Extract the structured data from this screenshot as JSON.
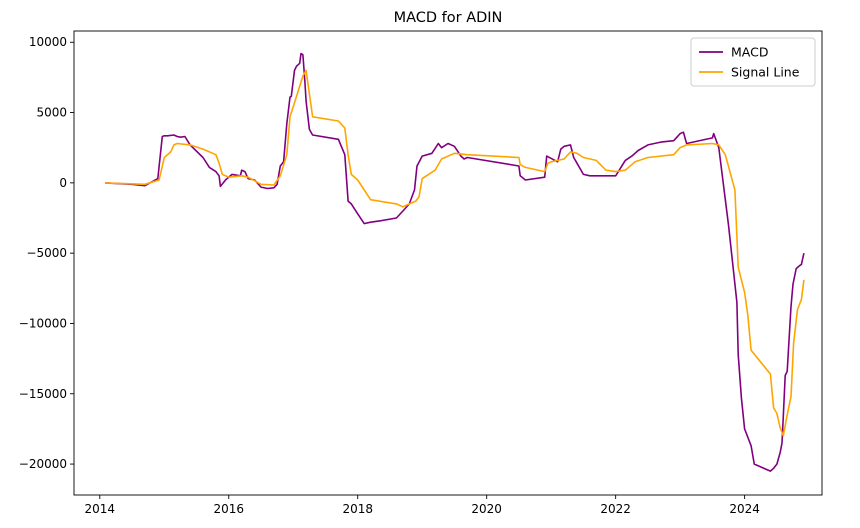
{
  "chart_data": {
    "type": "line",
    "title": "MACD for ADIN",
    "xlabel": "",
    "ylabel": "",
    "xlim": [
      2013.6,
      2025.2
    ],
    "ylim": [
      -22200,
      10800
    ],
    "x_ticks": [
      2014,
      2016,
      2018,
      2020,
      2022,
      2024
    ],
    "y_ticks": [
      10000,
      5000,
      0,
      -5000,
      -10000,
      -15000,
      -20000
    ],
    "y_tick_labels": [
      "10000",
      "5000",
      "0",
      "−5000",
      "−10000",
      "−15000",
      "−20000"
    ],
    "grid": false,
    "legend_position": "top-right",
    "series": [
      {
        "name": "MACD",
        "color": "#800080",
        "x": [
          2014.08,
          2014.5,
          2014.7,
          2014.9,
          2014.97,
          2015.0,
          2015.05,
          2015.15,
          2015.2,
          2015.25,
          2015.32,
          2015.4,
          2015.6,
          2015.7,
          2015.8,
          2015.85,
          2015.87,
          2015.95,
          2016.05,
          2016.18,
          2016.2,
          2016.25,
          2016.3,
          2016.4,
          2016.5,
          2016.6,
          2016.7,
          2016.75,
          2016.8,
          2016.85,
          2016.9,
          2016.95,
          2016.97,
          2017.02,
          2017.05,
          2017.1,
          2017.12,
          2017.15,
          2017.18,
          2017.2,
          2017.25,
          2017.3,
          2017.7,
          2017.8,
          2017.85,
          2017.9,
          2018.0,
          2018.1,
          2018.2,
          2018.35,
          2018.6,
          2018.7,
          2018.8,
          2018.88,
          2018.92,
          2019.0,
          2019.15,
          2019.25,
          2019.3,
          2019.4,
          2019.5,
          2019.6,
          2019.65,
          2019.7,
          2020.5,
          2020.52,
          2020.6,
          2020.9,
          2020.93,
          2021.1,
          2021.15,
          2021.2,
          2021.3,
          2021.35,
          2021.4,
          2021.5,
          2021.6,
          2021.8,
          2022.0,
          2022.15,
          2022.25,
          2022.35,
          2022.5,
          2022.7,
          2022.9,
          2023.0,
          2023.05,
          2023.1,
          2023.5,
          2023.52,
          2023.6,
          2023.75,
          2023.88,
          2023.9,
          2023.95,
          2024.0,
          2024.1,
          2024.15,
          2024.4,
          2024.45,
          2024.5,
          2024.55,
          2024.58,
          2024.6,
          2024.63,
          2024.66,
          2024.72,
          2024.75,
          2024.8,
          2024.85,
          2024.88,
          2024.92
        ],
        "y": [
          0,
          -100,
          -200,
          300,
          3300,
          3350,
          3350,
          3400,
          3300,
          3250,
          3300,
          2700,
          1800,
          1100,
          800,
          500,
          -250,
          200,
          600,
          500,
          900,
          800,
          300,
          200,
          -300,
          -400,
          -350,
          -100,
          1200,
          1500,
          4200,
          6100,
          6150,
          8000,
          8300,
          8500,
          9200,
          9100,
          7300,
          5800,
          3800,
          3400,
          3100,
          2000,
          -1300,
          -1500,
          -2200,
          -2900,
          -2800,
          -2700,
          -2500,
          -2000,
          -1500,
          -500,
          1200,
          1900,
          2100,
          2800,
          2500,
          2800,
          2600,
          1900,
          1700,
          1800,
          1200,
          500,
          200,
          400,
          1900,
          1500,
          2400,
          2600,
          2700,
          1800,
          1400,
          600,
          500,
          500,
          500,
          1600,
          1900,
          2300,
          2700,
          2900,
          3000,
          3500,
          3600,
          2800,
          3200,
          3500,
          2500,
          -3000,
          -8500,
          -12200,
          -15300,
          -17500,
          -18700,
          -20000,
          -20500,
          -20300,
          -20000,
          -19200,
          -18500,
          -16600,
          -13700,
          -13400,
          -8800,
          -7200,
          -6100,
          -5900,
          -5800,
          -5000
        ]
      },
      {
        "name": "Signal Line",
        "color": "#FFA500",
        "x": [
          2014.08,
          2014.7,
          2014.92,
          2015.0,
          2015.1,
          2015.15,
          2015.2,
          2015.4,
          2015.6,
          2015.8,
          2015.85,
          2015.9,
          2016.0,
          2016.2,
          2016.3,
          2016.5,
          2016.7,
          2016.8,
          2016.9,
          2016.95,
          2017.0,
          2017.15,
          2017.2,
          2017.3,
          2017.7,
          2017.8,
          2017.85,
          2017.9,
          2018.0,
          2018.2,
          2018.6,
          2018.7,
          2018.8,
          2018.9,
          2018.95,
          2019.0,
          2019.2,
          2019.3,
          2019.5,
          2019.7,
          2020.5,
          2020.52,
          2020.6,
          2020.9,
          2020.95,
          2021.0,
          2021.2,
          2021.3,
          2021.4,
          2021.5,
          2021.7,
          2021.85,
          2022.0,
          2022.15,
          2022.3,
          2022.5,
          2022.9,
          2023.0,
          2023.1,
          2023.5,
          2023.6,
          2023.7,
          2023.85,
          2023.9,
          2024.0,
          2024.05,
          2024.1,
          2024.4,
          2024.45,
          2024.5,
          2024.55,
          2024.6,
          2024.66,
          2024.72,
          2024.76,
          2024.82,
          2024.88,
          2024.92
        ],
        "y": [
          0,
          -100,
          200,
          1800,
          2200,
          2700,
          2800,
          2700,
          2400,
          2000,
          1400,
          600,
          400,
          500,
          400,
          -100,
          -150,
          500,
          2000,
          4700,
          5400,
          7600,
          8000,
          4700,
          4400,
          3900,
          2000,
          600,
          200,
          -1200,
          -1500,
          -1700,
          -1500,
          -1300,
          -1000,
          300,
          900,
          1700,
          2100,
          2000,
          1800,
          1300,
          1100,
          800,
          1400,
          1500,
          1700,
          2200,
          2100,
          1800,
          1600,
          900,
          800,
          900,
          1500,
          1800,
          2000,
          2500,
          2700,
          2800,
          2700,
          2000,
          -500,
          -6000,
          -7800,
          -9400,
          -11900,
          -13600,
          -16000,
          -16400,
          -17400,
          -18000,
          -16500,
          -15200,
          -11400,
          -9000,
          -8300,
          -6900
        ]
      }
    ]
  }
}
